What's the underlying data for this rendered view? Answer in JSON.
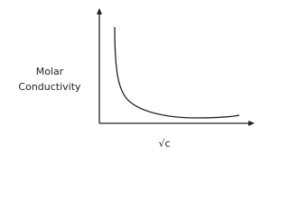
{
  "y_axis_label": {
    "line1": "Molar",
    "line2": "Conductivity"
  },
  "x_axis_label": "√c"
}
